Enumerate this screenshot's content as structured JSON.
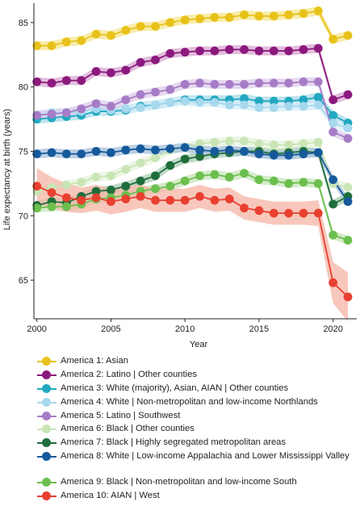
{
  "chart_data": {
    "type": "line",
    "ylabel": "Life expectancy at birth (years)",
    "xlabel": "Year",
    "ylim": [
      62,
      86.5
    ],
    "xlim": [
      1999.8,
      2021.6
    ],
    "x_ticks": [
      "2000",
      "2005",
      "2010",
      "2015",
      "2020"
    ],
    "y_ticks": [
      "65",
      "70",
      "75",
      "80",
      "85"
    ],
    "x": [
      2000,
      2001,
      2002,
      2003,
      2004,
      2005,
      2006,
      2007,
      2008,
      2009,
      2010,
      2011,
      2012,
      2013,
      2014,
      2015,
      2016,
      2017,
      2018,
      2019,
      2020,
      2021
    ],
    "legend_position": "bottom",
    "series": [
      {
        "name": "America 1: Asian",
        "color": "#e8c21a",
        "band_color": "#f5e58c",
        "values": [
          83.2,
          83.2,
          83.5,
          83.6,
          84.1,
          84.0,
          84.4,
          84.7,
          84.7,
          85.0,
          85.2,
          85.3,
          85.4,
          85.4,
          85.6,
          85.5,
          85.5,
          85.6,
          85.7,
          85.9,
          83.7,
          84.0
        ]
      },
      {
        "name": "America 2: Latino | Other counties",
        "color": "#8c1a7e",
        "band_color": "#d8a6d2",
        "values": [
          80.4,
          80.3,
          80.5,
          80.5,
          81.2,
          81.1,
          81.3,
          81.9,
          82.1,
          82.6,
          82.7,
          82.8,
          82.8,
          82.9,
          82.9,
          82.8,
          82.8,
          82.8,
          82.9,
          83.0,
          79.0,
          79.4
        ]
      },
      {
        "name": "America 3: White (majority), Asian, AIAN | Other counties",
        "color": "#22a8c0",
        "band_color": "#a8dbe8",
        "values": [
          77.5,
          77.6,
          77.7,
          77.8,
          78.1,
          78.1,
          78.2,
          78.5,
          78.6,
          78.8,
          79.0,
          79.0,
          79.0,
          79.0,
          79.1,
          78.9,
          78.9,
          78.9,
          79.0,
          79.2,
          77.8,
          77.2
        ]
      },
      {
        "name": "America 4: White | Non-metropolitan and low-income Northlands",
        "color": "#a6d8ee",
        "band_color": "#d6eef8",
        "values": [
          77.8,
          78.0,
          78.0,
          78.1,
          78.3,
          78.2,
          78.3,
          78.4,
          78.6,
          78.8,
          78.9,
          78.8,
          78.8,
          78.6,
          78.6,
          78.4,
          78.4,
          78.5,
          78.5,
          78.6,
          77.2,
          76.8
        ]
      },
      {
        "name": "America 5: Latino | Southwest",
        "color": "#a77cc7",
        "band_color": "#dccbeb",
        "values": [
          77.8,
          77.9,
          78.0,
          78.3,
          78.7,
          78.5,
          79.0,
          79.4,
          79.6,
          79.8,
          80.2,
          80.3,
          80.2,
          80.2,
          80.2,
          80.3,
          80.3,
          80.3,
          80.4,
          80.4,
          76.5,
          76.0
        ]
      },
      {
        "name": "America 6: Black | Other counties",
        "color": "#c9e5b5",
        "band_color": "#e6f3dc",
        "values": [
          71.9,
          72.2,
          72.4,
          72.6,
          73.0,
          73.1,
          73.6,
          74.1,
          74.5,
          75.1,
          75.3,
          75.6,
          75.7,
          75.8,
          75.8,
          75.6,
          75.5,
          75.5,
          75.6,
          75.7,
          72.5,
          72.2
        ]
      },
      {
        "name": "America 7: Black | Highly segregated metropolitan areas",
        "color": "#1f6e3c",
        "band_color": "#a9cdb4",
        "values": [
          70.8,
          71.1,
          71.0,
          71.5,
          71.9,
          72.0,
          72.3,
          72.7,
          73.1,
          73.9,
          74.4,
          74.6,
          74.8,
          74.9,
          75.0,
          75.0,
          74.8,
          74.9,
          75.0,
          74.9,
          70.9,
          71.5
        ]
      },
      {
        "name": "America 8: White | Low-income Appalachia and Lower Mississippi Valley",
        "color": "#165a9c",
        "band_color": "#a4bfdc",
        "values": [
          74.8,
          74.9,
          74.8,
          74.8,
          75.0,
          74.9,
          75.1,
          75.2,
          75.1,
          75.2,
          75.3,
          75.1,
          75.0,
          75.1,
          75.0,
          74.8,
          74.7,
          74.7,
          74.8,
          74.9,
          72.8,
          71.1
        ]
      },
      {
        "name": "America 9: Black | Non-metropolitan and low-income South",
        "color": "#6cbf4e",
        "band_color": "#c6e6b8",
        "values": [
          70.6,
          70.7,
          70.7,
          70.9,
          71.3,
          71.4,
          71.6,
          71.9,
          72.1,
          72.3,
          72.7,
          73.1,
          73.2,
          73.0,
          73.3,
          72.8,
          72.7,
          72.5,
          72.6,
          72.5,
          68.5,
          68.1
        ]
      },
      {
        "name": "America 10: AIAN | West",
        "color": "#e84030",
        "band_color": "#f6b4a6",
        "band": [
          1.4,
          1.2,
          1.1,
          1.0,
          1.0,
          1.0,
          1.0,
          0.9,
          0.9,
          0.9,
          0.9,
          0.9,
          0.9,
          0.9,
          0.9,
          0.9,
          0.9,
          0.9,
          0.9,
          1.0,
          1.6,
          1.9
        ],
        "values": [
          72.3,
          71.8,
          71.4,
          71.2,
          71.4,
          71.1,
          71.3,
          71.5,
          71.2,
          71.2,
          71.2,
          71.5,
          71.2,
          71.3,
          70.6,
          70.4,
          70.2,
          70.2,
          70.2,
          70.2,
          64.8,
          63.7
        ]
      }
    ]
  }
}
